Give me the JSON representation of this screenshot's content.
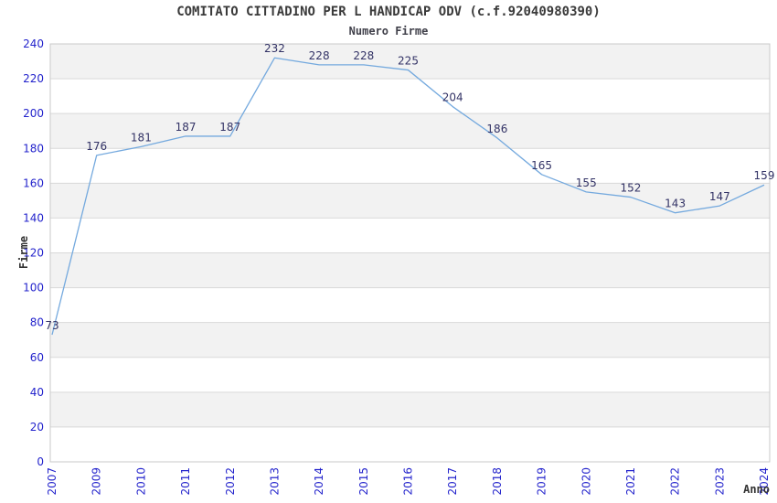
{
  "chart_data": {
    "type": "line",
    "title": "COMITATO CITTADINO PER L HANDICAP ODV (c.f.92040980390)",
    "subtitle": "Numero Firme",
    "xlabel": "Anno",
    "ylabel": "Firme",
    "categories": [
      "2007",
      "2009",
      "2010",
      "2011",
      "2012",
      "2013",
      "2014",
      "2015",
      "2016",
      "2017",
      "2018",
      "2019",
      "2020",
      "2021",
      "2022",
      "2023",
      "2024"
    ],
    "values": [
      73,
      176,
      181,
      187,
      187,
      232,
      228,
      228,
      225,
      204,
      186,
      165,
      155,
      152,
      143,
      147,
      159
    ],
    "ylim": [
      0,
      240
    ],
    "ytick_step": 20,
    "grid": "horizontal-bands",
    "legend": "none",
    "point_labels": true,
    "colors": {
      "line": "#74a9de",
      "tick_label": "#2424cc",
      "point_label": "#333366",
      "band": "#f2f2f2",
      "band_alt": "#ffffff",
      "gridline": "#d9d9d9",
      "border": "#c9c9c9",
      "title": "#3a3a3a",
      "axis_title": "#333333"
    }
  }
}
